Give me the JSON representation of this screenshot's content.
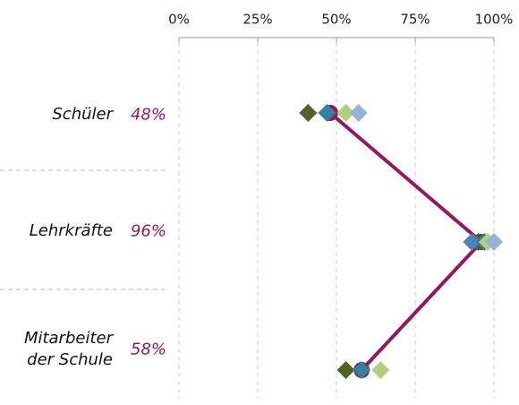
{
  "chart_data": {
    "type": "dot",
    "categories": [
      "Schüler",
      "Lehrkräfte",
      "Mitarbeiter der Schule"
    ],
    "xlim": [
      0,
      100
    ],
    "xticks": [
      {
        "value": 0,
        "label": "0%"
      },
      {
        "value": 25,
        "label": "25%"
      },
      {
        "value": 50,
        "label": "50%"
      },
      {
        "value": 75,
        "label": "75%"
      },
      {
        "value": 100,
        "label": "100%"
      }
    ],
    "grid": true,
    "series": [
      {
        "color": "#93195f",
        "marker": "circle",
        "line": true,
        "values": [
          48,
          96,
          58
        ],
        "value_labels": [
          "48%",
          "96%",
          "58%"
        ]
      },
      {
        "color": "#4f6228",
        "marker": "diamond",
        "values": [
          41,
          95,
          53
        ]
      },
      {
        "color": "#4f81bd",
        "marker": "diamond",
        "values": [
          null,
          93,
          null
        ]
      },
      {
        "color": "#31849b",
        "marker": "diamond",
        "values": [
          47,
          97,
          58
        ]
      },
      {
        "color": "#b3cf7a",
        "marker": "diamond",
        "values": [
          53,
          98,
          64
        ]
      },
      {
        "color": "#95b3d7",
        "marker": "diamond",
        "values": [
          57,
          100,
          null
        ]
      }
    ]
  }
}
